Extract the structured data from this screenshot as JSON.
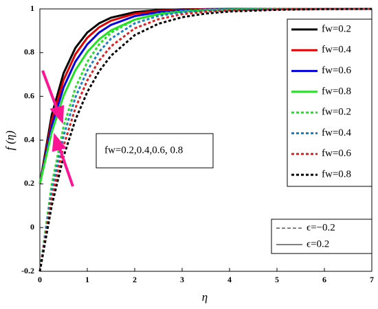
{
  "chart_data": {
    "type": "line",
    "xlabel": "η",
    "ylabel": "f (η)",
    "annotation": "fw=0.2,0.4,0.6, 0.8",
    "x": [
      0,
      0.25,
      0.5,
      0.75,
      1,
      1.25,
      1.5,
      2,
      2.5,
      3,
      3.5,
      4,
      5,
      6,
      7
    ],
    "xlim": [
      0,
      7
    ],
    "xticks": [
      0,
      1,
      2,
      3,
      4,
      5,
      6,
      7
    ],
    "ylim": [
      -0.2,
      1
    ],
    "yticks": [
      -0.2,
      0,
      0.2,
      0.4,
      0.6,
      0.8,
      1
    ],
    "legend": "upper right",
    "series": [
      {
        "name": "fw=0.2",
        "color": "#000000",
        "dashed": false,
        "values": [
          0.2,
          0.515,
          0.706,
          0.822,
          0.892,
          0.934,
          0.96,
          0.985,
          0.995,
          0.998,
          0.999,
          1,
          1,
          1,
          1
        ]
      },
      {
        "name": "fw=0.4",
        "color": "#e00000",
        "dashed": false,
        "values": [
          0.2,
          0.49,
          0.675,
          0.793,
          0.868,
          0.916,
          0.946,
          0.978,
          0.991,
          0.996,
          0.999,
          0.999,
          1,
          1,
          1
        ]
      },
      {
        "name": "fw=0.6",
        "color": "#0000e0",
        "dashed": false,
        "values": [
          0.2,
          0.464,
          0.641,
          0.759,
          0.838,
          0.892,
          0.927,
          0.967,
          0.985,
          0.993,
          0.997,
          0.999,
          1,
          1,
          1
        ]
      },
      {
        "name": "fw=0.8",
        "color": "#22e022",
        "dashed": false,
        "values": [
          0.2,
          0.436,
          0.603,
          0.72,
          0.803,
          0.861,
          0.902,
          0.951,
          0.976,
          0.988,
          0.994,
          0.997,
          0.999,
          1,
          1
        ]
      },
      {
        "name": "fw=0.2",
        "color": "#22e022",
        "dashed": true,
        "values": [
          -0.2,
          0.196,
          0.461,
          0.639,
          0.758,
          0.838,
          0.891,
          0.951,
          0.978,
          0.99,
          0.996,
          0.998,
          1,
          1,
          1
        ]
      },
      {
        "name": "fw=0.4",
        "color": "#1a7fc8",
        "dashed": true,
        "values": [
          -0.2,
          0.165,
          0.419,
          0.596,
          0.718,
          0.804,
          0.864,
          0.934,
          0.968,
          0.985,
          0.992,
          0.996,
          0.999,
          1,
          1
        ]
      },
      {
        "name": "fw=0.6",
        "color": "#e02020",
        "dashed": true,
        "values": [
          -0.2,
          0.133,
          0.374,
          0.547,
          0.673,
          0.764,
          0.829,
          0.911,
          0.953,
          0.976,
          0.987,
          0.993,
          0.998,
          1,
          1
        ]
      },
      {
        "name": "fw=0.8",
        "color": "#000000",
        "dashed": true,
        "values": [
          -0.2,
          0.1,
          0.325,
          0.493,
          0.62,
          0.715,
          0.786,
          0.88,
          0.932,
          0.962,
          0.979,
          0.988,
          0.996,
          0.999,
          1
        ]
      }
    ],
    "line_styles": [
      {
        "label": "ϵ=−0.2",
        "dashed": true
      },
      {
        "label": "ϵ=0.2",
        "dashed": false
      }
    ]
  }
}
